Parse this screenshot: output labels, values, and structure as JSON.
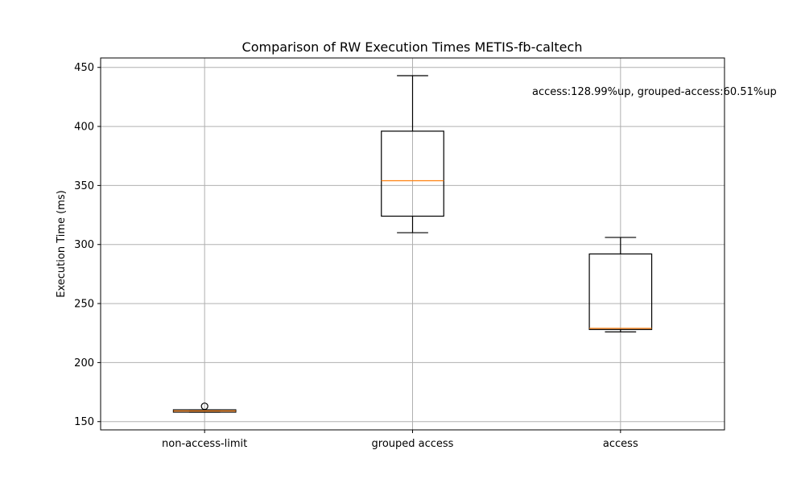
{
  "chart_data": {
    "type": "box",
    "title": "Comparison of RW Execution Times METIS-fb-caltech",
    "xlabel": "",
    "ylabel": "Execution Time (ms)",
    "ylim": [
      143,
      458
    ],
    "yticks": [
      150,
      200,
      250,
      300,
      350,
      400,
      450
    ],
    "grid": true,
    "annotation": "access:128.99%up, grouped-access:60.51%up",
    "categories": [
      "non-access-limit",
      "grouped access",
      "access"
    ],
    "boxes": [
      {
        "category": "non-access-limit",
        "whisker_low": 158,
        "q1": 158,
        "median": 159,
        "q3": 160,
        "whisker_high": 160,
        "outliers": [
          163
        ]
      },
      {
        "category": "grouped access",
        "whisker_low": 310,
        "q1": 324,
        "median": 354,
        "q3": 396,
        "whisker_high": 443,
        "outliers": []
      },
      {
        "category": "access",
        "whisker_low": 226,
        "q1": 228,
        "median": 229,
        "q3": 292,
        "whisker_high": 306,
        "outliers": []
      }
    ],
    "colors": {
      "box": "#000000",
      "median": "#ff7f0e",
      "grid": "#b0b0b0"
    }
  }
}
